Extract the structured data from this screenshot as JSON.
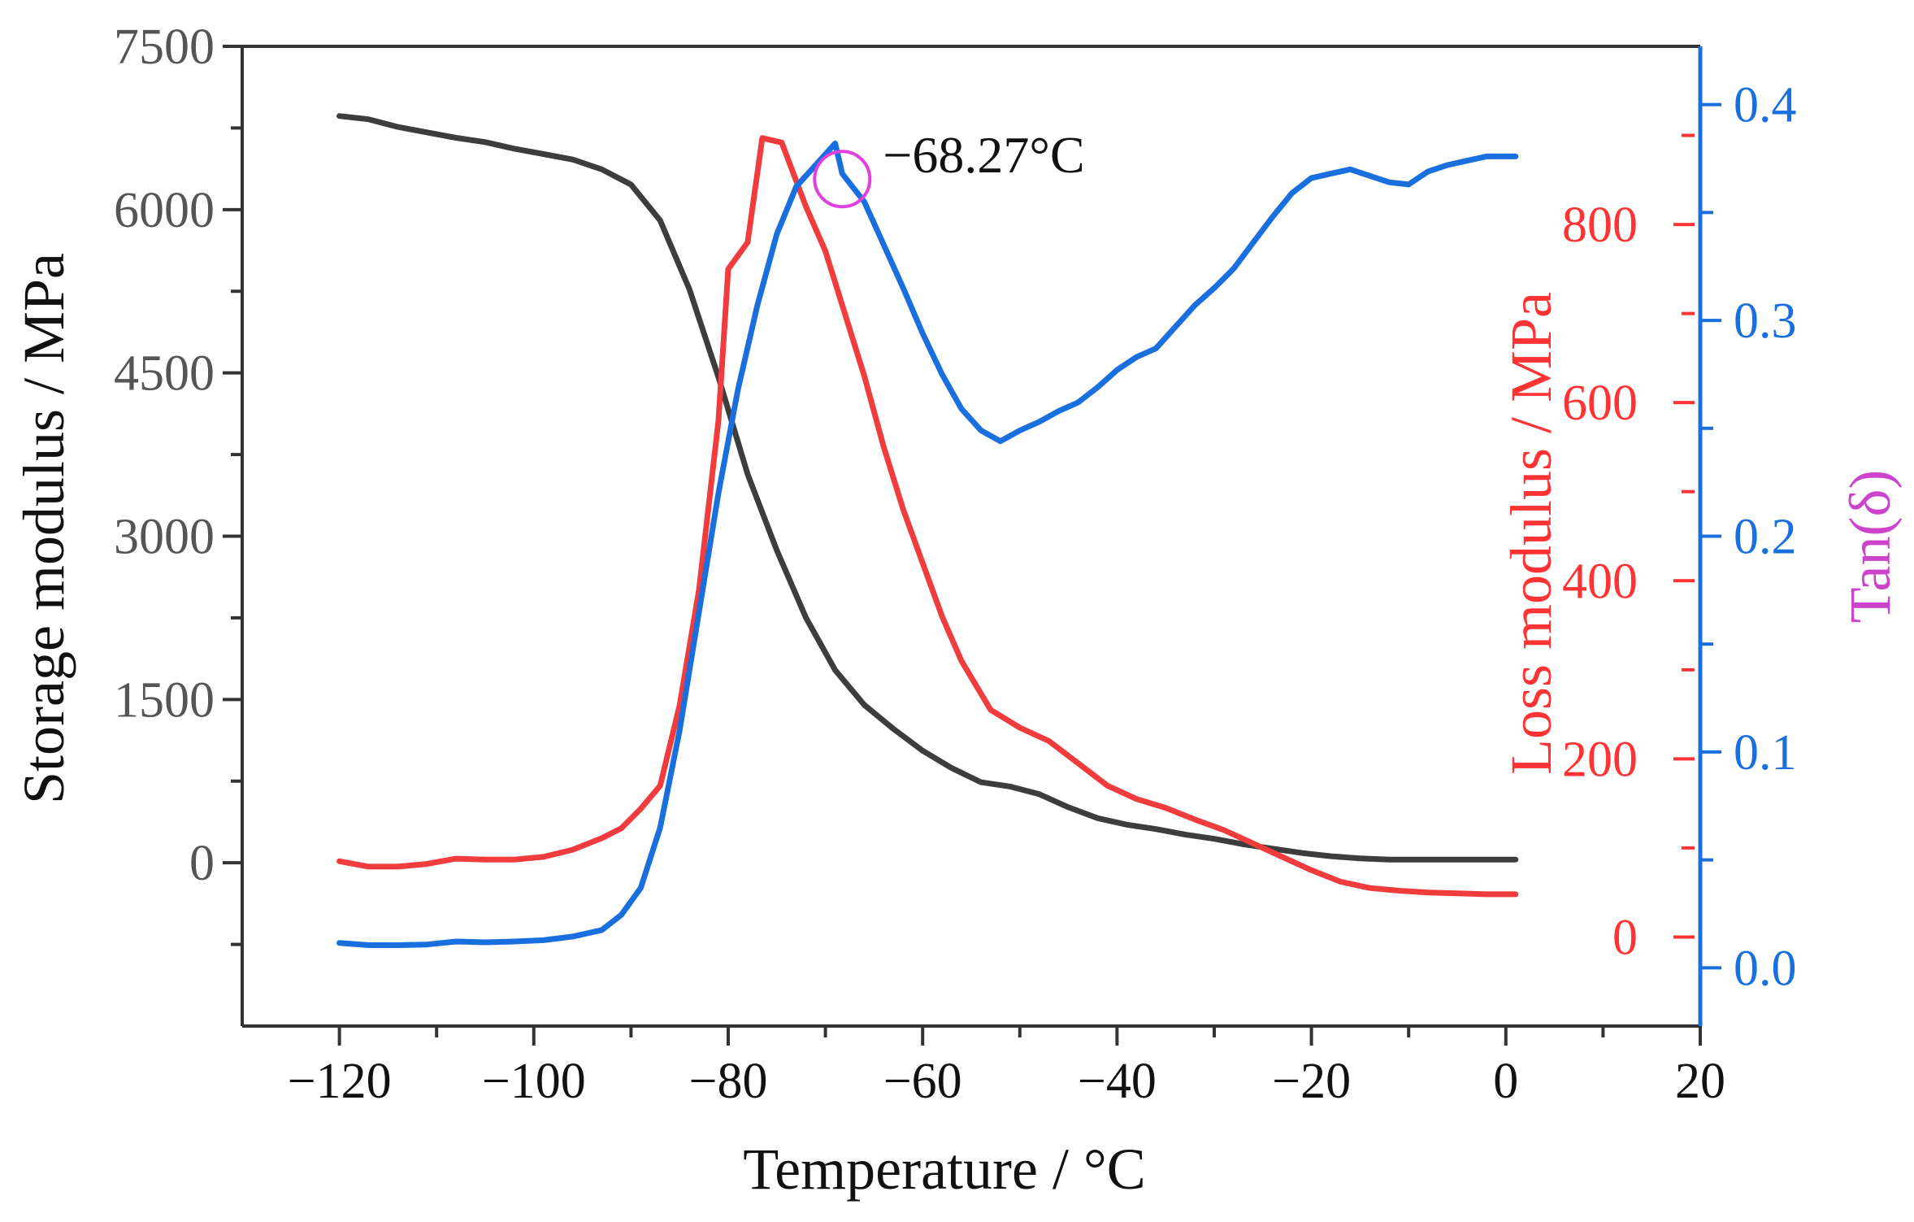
{
  "chart_data": {
    "type": "line",
    "title": "",
    "xlabel": "Temperature / °C",
    "xlim": [
      -130,
      20
    ],
    "xticks": [
      -120,
      -100,
      -80,
      -60,
      -40,
      -20,
      0,
      20
    ],
    "xtick_labels": [
      "−120",
      "−100",
      "−80",
      "−60",
      "−40",
      "−20",
      "0",
      "20"
    ],
    "y_left": {
      "label": "Storage modulus / MPa",
      "lim": [
        -1500,
        7500
      ],
      "ticks": [
        0,
        1500,
        3000,
        4500,
        6000,
        7500
      ],
      "tick_labels": [
        "0",
        "1500",
        "3000",
        "4500",
        "6000",
        "7500"
      ],
      "color": "#333333"
    },
    "y_right1": {
      "label": "Loss modulus / MPa",
      "lim": [
        -100,
        1000
      ],
      "ticks": [
        0,
        200,
        400,
        600,
        800
      ],
      "tick_labels": [
        "0",
        "200",
        "400",
        "600",
        "800"
      ],
      "color": "#ff3333"
    },
    "y_right2": {
      "label": "Tan(δ)",
      "lim": [
        -0.027,
        0.427
      ],
      "ticks": [
        0.0,
        0.1,
        0.2,
        0.3,
        0.4
      ],
      "tick_labels": [
        "0.0",
        "0.1",
        "0.2",
        "0.3",
        "0.4"
      ],
      "color": "#1a6fde",
      "label_color": "#cc44cc"
    },
    "series": [
      {
        "name": "Storage modulus",
        "axis": "y_left",
        "color": "#3d3d3d",
        "x": [
          -120,
          -117,
          -114,
          -111,
          -108,
          -105,
          -102,
          -99,
          -96,
          -93,
          -90,
          -87,
          -84,
          -81,
          -78,
          -75,
          -72,
          -69,
          -66,
          -63,
          -60,
          -57,
          -54,
          -51,
          -48,
          -45,
          -42,
          -39,
          -36,
          -33,
          -30,
          -27,
          -24,
          -21,
          -18,
          -15,
          -12,
          -9,
          -6,
          -3,
          0,
          1
        ],
        "values": [
          6860,
          6830,
          6760,
          6710,
          6660,
          6620,
          6560,
          6510,
          6460,
          6370,
          6230,
          5900,
          5270,
          4460,
          3570,
          2870,
          2250,
          1770,
          1450,
          1230,
          1030,
          870,
          740,
          700,
          630,
          510,
          410,
          350,
          310,
          260,
          220,
          170,
          130,
          90,
          60,
          40,
          30,
          30,
          30,
          30,
          30,
          30
        ]
      },
      {
        "name": "Loss modulus",
        "axis": "y_right1",
        "color": "#f03c3c",
        "x": [
          -120,
          -117,
          -114,
          -111,
          -108,
          -105,
          -102,
          -99,
          -96,
          -93,
          -91,
          -89,
          -87,
          -85,
          -83,
          -81,
          -80,
          -78,
          -76.5,
          -74.5,
          -72,
          -70,
          -68,
          -66,
          -64,
          -62,
          -60,
          -58,
          -56,
          -53,
          -50,
          -47,
          -44,
          -41,
          -38,
          -35,
          -32,
          -29,
          -26,
          -23,
          -20,
          -17,
          -14,
          -11,
          -8,
          -5,
          -2,
          1
        ],
        "values": [
          85,
          79,
          79,
          82,
          88,
          87,
          87,
          90,
          98,
          111,
          122,
          144,
          170,
          260,
          390,
          580,
          750,
          780,
          897,
          892,
          820,
          770,
          700,
          630,
          550,
          480,
          420,
          360,
          310,
          255,
          235,
          220,
          195,
          170,
          155,
          145,
          132,
          120,
          105,
          90,
          75,
          62,
          55,
          52,
          50,
          49,
          48,
          48
        ]
      },
      {
        "name": "Tan(δ)",
        "axis": "y_right2",
        "color": "#1a6fde",
        "x": [
          -120,
          -117,
          -114,
          -111,
          -108,
          -105,
          -102,
          -99,
          -96,
          -93,
          -91,
          -89,
          -87,
          -85,
          -83,
          -81,
          -79,
          -77,
          -75,
          -73,
          -71,
          -69,
          -68.27,
          -66,
          -64,
          -62,
          -60,
          -58,
          -56,
          -54,
          -52,
          -50,
          -48,
          -46,
          -44,
          -42,
          -40,
          -38,
          -36,
          -34,
          -32,
          -30,
          -28,
          -26,
          -24,
          -22,
          -20,
          -18,
          -16,
          -14,
          -12,
          -10,
          -8,
          -6,
          -4,
          -2,
          0,
          1
        ],
        "values": [
          0.0115,
          0.0105,
          0.0105,
          0.0108,
          0.0122,
          0.0118,
          0.0122,
          0.0128,
          0.0145,
          0.0175,
          0.0245,
          0.037,
          0.065,
          0.11,
          0.165,
          0.22,
          0.268,
          0.307,
          0.34,
          0.362,
          0.372,
          0.382,
          0.368,
          0.355,
          0.335,
          0.315,
          0.294,
          0.275,
          0.259,
          0.249,
          0.244,
          0.249,
          0.253,
          0.258,
          0.262,
          0.269,
          0.277,
          0.283,
          0.287,
          0.297,
          0.307,
          0.315,
          0.324,
          0.336,
          0.348,
          0.359,
          0.366,
          0.368,
          0.37,
          0.367,
          0.364,
          0.363,
          0.369,
          0.372,
          0.374,
          0.376,
          0.376,
          0.376
        ]
      }
    ],
    "annotations": [
      {
        "text": "−68.27°C",
        "x": -68.27,
        "y": 0.3655,
        "axis": "y_right2",
        "marker": "circle",
        "marker_color": "#e040e0"
      }
    ]
  }
}
